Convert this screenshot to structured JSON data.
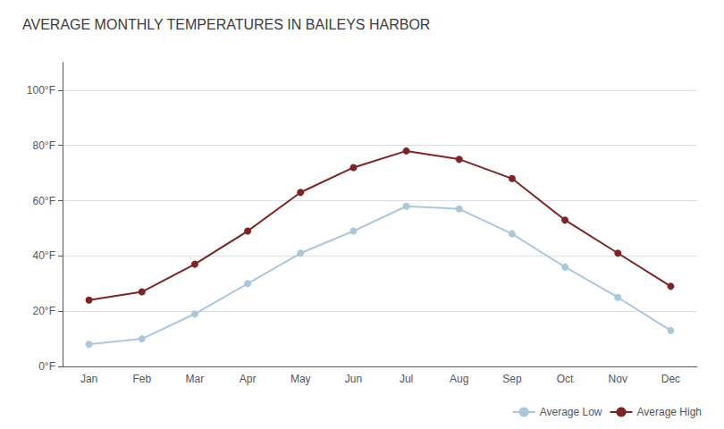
{
  "chart_data": {
    "type": "line",
    "title": "AVERAGE MONTHLY TEMPERATURES IN BAILEYS HARBOR",
    "categories": [
      "Jan",
      "Feb",
      "Mar",
      "Apr",
      "May",
      "Jun",
      "Jul",
      "Aug",
      "Sep",
      "Oct",
      "Nov",
      "Dec"
    ],
    "series": [
      {
        "name": "Average Low",
        "color": "#aac8dc",
        "values": [
          8,
          10,
          19,
          30,
          41,
          49,
          58,
          57,
          48,
          36,
          25,
          13
        ]
      },
      {
        "name": "Average High",
        "color": "#7b2525",
        "values": [
          24,
          27,
          37,
          49,
          63,
          72,
          78,
          75,
          68,
          53,
          41,
          29
        ]
      }
    ],
    "ylim": [
      0,
      110
    ],
    "yticks": [
      {
        "value": 0,
        "label": "0°F"
      },
      {
        "value": 20,
        "label": "20°F"
      },
      {
        "value": 40,
        "label": "40°F"
      },
      {
        "value": 60,
        "label": "60°F"
      },
      {
        "value": 80,
        "label": "80°F"
      },
      {
        "value": 100,
        "label": "100°F"
      }
    ],
    "grid": true,
    "legend": "lower right"
  }
}
